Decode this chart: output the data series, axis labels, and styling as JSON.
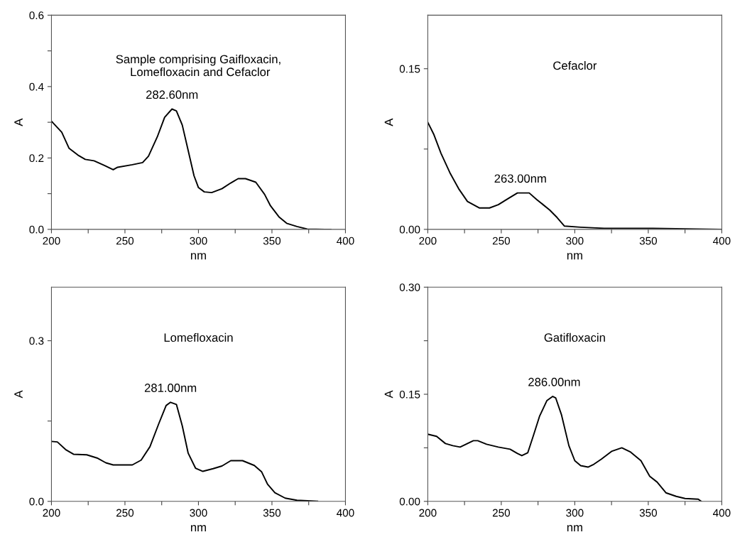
{
  "chart_data": [
    {
      "type": "line",
      "xlabel": "nm",
      "ylabel": "A",
      "xlim": [
        200,
        400
      ],
      "ylim": [
        0,
        0.6
      ],
      "xticks": [
        200,
        {
          "value": 225,
          "label": null
        },
        250,
        {
          "value": 275,
          "label": null
        },
        300,
        {
          "value": 325,
          "label": null
        },
        350,
        {
          "value": 375,
          "label": null
        },
        400
      ],
      "yticks": [
        {
          "value": 0,
          "label": "0.0"
        },
        {
          "value": 0.1,
          "label": null
        },
        {
          "value": 0.2,
          "label": "0.2"
        },
        {
          "value": 0.3,
          "label": null
        },
        {
          "value": 0.4,
          "label": "0.4"
        },
        {
          "value": 0.5,
          "label": null
        },
        {
          "value": 0.6,
          "label": "0.6"
        }
      ],
      "annotations": [
        "Sample comprising Gaifloxacin,\n Lomefloxacin and Cefaclor",
        {
          "text": "282.60nm",
          "x": 282,
          "y": 0.337
        }
      ],
      "series": [
        {
          "color": "#000000",
          "x": [
            200,
            207,
            212,
            218,
            223,
            229,
            236,
            242,
            245,
            255,
            262,
            266,
            272,
            277,
            282,
            285,
            289,
            293,
            297,
            300,
            304,
            309,
            316,
            322,
            327,
            332,
            339,
            345,
            349,
            355,
            360,
            367,
            374,
            386,
            390
          ],
          "values": [
            0.303,
            0.272,
            0.227,
            0.208,
            0.196,
            0.192,
            0.179,
            0.167,
            0.174,
            0.181,
            0.187,
            0.205,
            0.259,
            0.314,
            0.337,
            0.332,
            0.292,
            0.221,
            0.15,
            0.117,
            0.105,
            0.103,
            0.114,
            0.13,
            0.142,
            0.142,
            0.132,
            0.098,
            0.066,
            0.034,
            0.017,
            0.008,
            0.001,
            0,
            0
          ]
        }
      ]
    },
    {
      "type": "line",
      "xlabel": "nm",
      "ylabel": "A",
      "xlim": [
        200,
        400
      ],
      "ylim": [
        0,
        0.2
      ],
      "xticks": [
        200,
        {
          "value": 225,
          "label": null
        },
        250,
        {
          "value": 275,
          "label": null
        },
        300,
        {
          "value": 325,
          "label": null
        },
        350,
        {
          "value": 375,
          "label": null
        },
        400
      ],
      "yticks": [
        {
          "value": 0,
          "label": "0.00"
        },
        {
          "value": 0.075,
          "label": null
        },
        {
          "value": 0.15,
          "label": "0.15"
        }
      ],
      "annotations": [
        "Cefaclor",
        {
          "text": "263.00nm",
          "x": 263,
          "y": 0.034
        }
      ],
      "series": [
        {
          "color": "#000000",
          "x": [
            200,
            204,
            209,
            215,
            221,
            227,
            235,
            242,
            248,
            255,
            261,
            269,
            274,
            283,
            288,
            293,
            304,
            320,
            353,
            400
          ],
          "values": [
            0.1,
            0.089,
            0.071,
            0.053,
            0.038,
            0.026,
            0.02,
            0.02,
            0.023,
            0.029,
            0.034,
            0.034,
            0.028,
            0.018,
            0.011,
            0.003,
            0.002,
            0.001,
            0.001,
            0
          ]
        }
      ]
    },
    {
      "type": "line",
      "xlabel": "nm",
      "ylabel": "A",
      "xlim": [
        200,
        400
      ],
      "ylim": [
        0,
        0.4
      ],
      "xticks": [
        200,
        {
          "value": 225,
          "label": null
        },
        250,
        {
          "value": 275,
          "label": null
        },
        300,
        {
          "value": 325,
          "label": null
        },
        350,
        {
          "value": 375,
          "label": null
        },
        400
      ],
      "yticks": [
        {
          "value": 0,
          "label": "0.0"
        },
        {
          "value": 0.15,
          "label": null
        },
        {
          "value": 0.3,
          "label": "0.3"
        }
      ],
      "annotations": [
        "Lomefloxacin",
        {
          "text": "281.00nm",
          "x": 281,
          "y": 0.185
        }
      ],
      "series": [
        {
          "color": "#000000",
          "x": [
            200,
            204,
            210,
            215,
            224,
            231,
            237,
            242,
            255,
            261,
            267,
            273,
            278,
            281,
            285,
            289,
            293,
            298,
            303,
            310,
            316,
            322,
            330,
            338,
            343,
            347,
            352,
            359,
            367,
            381
          ],
          "values": [
            0.112,
            0.111,
            0.096,
            0.088,
            0.087,
            0.081,
            0.072,
            0.068,
            0.068,
            0.077,
            0.102,
            0.145,
            0.179,
            0.185,
            0.181,
            0.141,
            0.09,
            0.062,
            0.056,
            0.061,
            0.066,
            0.076,
            0.076,
            0.067,
            0.055,
            0.032,
            0.016,
            0.006,
            0.002,
            0
          ]
        }
      ]
    },
    {
      "type": "line",
      "xlabel": "nm",
      "ylabel": "A",
      "xlim": [
        200,
        400
      ],
      "ylim": [
        0,
        0.3
      ],
      "xticks": [
        200,
        {
          "value": 225,
          "label": null
        },
        250,
        {
          "value": 275,
          "label": null
        },
        300,
        {
          "value": 325,
          "label": null
        },
        350,
        {
          "value": 375,
          "label": null
        },
        400
      ],
      "yticks": [
        {
          "value": 0,
          "label": "0.00"
        },
        {
          "value": 0.075,
          "label": null
        },
        {
          "value": 0.15,
          "label": "0.15"
        },
        {
          "value": 0.225,
          "label": null
        },
        {
          "value": 0.3,
          "label": "0.30"
        }
      ],
      "annotations": [
        "Gatifloxacin",
        {
          "text": "286.00nm",
          "x": 286,
          "y": 0.147
        }
      ],
      "series": [
        {
          "color": "#000000",
          "x": [
            200,
            206,
            212,
            217,
            222,
            227,
            231,
            234,
            240,
            248,
            256,
            261,
            264,
            268,
            272,
            276,
            281,
            285,
            287,
            291,
            296,
            300,
            304,
            309,
            313,
            318,
            325,
            332,
            338,
            345,
            351,
            356,
            362,
            369,
            375,
            384,
            386
          ],
          "values": [
            0.094,
            0.091,
            0.081,
            0.078,
            0.076,
            0.081,
            0.085,
            0.085,
            0.08,
            0.076,
            0.073,
            0.067,
            0.064,
            0.068,
            0.093,
            0.119,
            0.141,
            0.147,
            0.145,
            0.121,
            0.078,
            0.057,
            0.05,
            0.048,
            0.052,
            0.059,
            0.07,
            0.075,
            0.069,
            0.057,
            0.035,
            0.027,
            0.012,
            0.007,
            0.004,
            0.003,
            0
          ]
        }
      ]
    }
  ]
}
